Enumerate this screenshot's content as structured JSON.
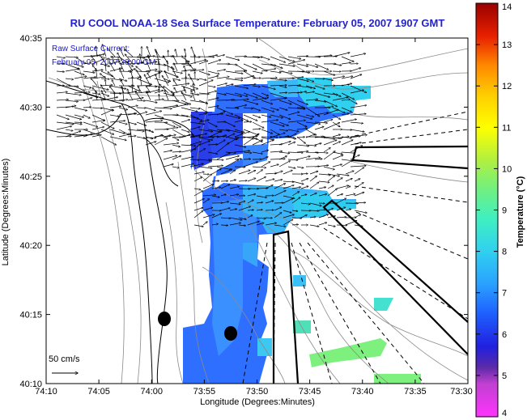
{
  "title": "RU COOL  NOAA-18  Sea Surface Temperature:  February 05, 2007 1907 GMT",
  "current_legend": {
    "line1": "Raw Surface Current:",
    "line2": "February 05, 2007 20:00 GMT"
  },
  "scale_label": "50 cm/s",
  "x_axis": {
    "label": "Longitude (Degrees:Minutes)",
    "ticks": [
      "74:10",
      "74:05",
      "74:00",
      "73:55",
      "73:50",
      "73:45",
      "73:40",
      "73:35",
      "73:30"
    ]
  },
  "y_axis": {
    "label": "Latitude (Degrees:Minutes)",
    "ticks": [
      "40:35",
      "40:30",
      "40:25",
      "40:20",
      "40:15",
      "40:10"
    ]
  },
  "colorbar": {
    "label": "Temperature (°C)",
    "ticks": [
      "14",
      "13",
      "12",
      "11",
      "10",
      "9",
      "8",
      "7",
      "6",
      "5",
      "4"
    ]
  },
  "colors": {
    "title": "#2222cc",
    "sst_blue": "#2f6fff",
    "sst_cyan": "#2fd0f0",
    "sst_green": "#7ef07e",
    "contour": "#888888"
  }
}
